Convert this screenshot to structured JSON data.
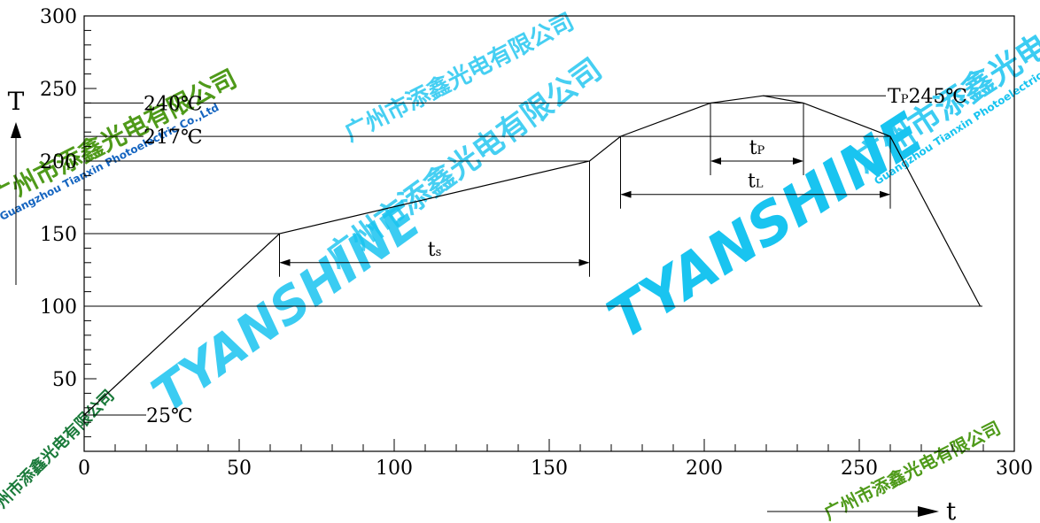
{
  "chart_data": {
    "type": "line",
    "series": [
      {
        "x": [
          0,
          63,
          163,
          173,
          202,
          219,
          232,
          260,
          289
        ],
        "y": [
          25,
          150,
          200,
          217,
          240,
          245,
          240,
          217,
          100
        ]
      }
    ],
    "xlim": [
      0,
      300
    ],
    "ylim": [
      0,
      300
    ],
    "xticks": [
      0,
      50,
      100,
      150,
      200,
      250,
      300
    ],
    "yticks": [
      50,
      100,
      150,
      200,
      250,
      300
    ],
    "x_minor_step": 10,
    "y_minor_step": 10,
    "xlabel": "t",
    "ylabel": "T",
    "grid": false,
    "reference_lines": [
      {
        "y": 240,
        "label": "240℃"
      },
      {
        "y": 217,
        "label": "217℃"
      },
      {
        "y": 200,
        "label": ""
      },
      {
        "y": 150,
        "label": ""
      },
      {
        "y": 100,
        "label": ""
      },
      {
        "y": 25,
        "label": "25℃"
      }
    ],
    "peak": {
      "label": "TP 245℃",
      "t_main": "T",
      "t_sub": "P",
      "value_text": "245℃"
    },
    "intervals": [
      {
        "name": "ts",
        "main": "t",
        "sub": "s",
        "from": 63,
        "to": 163
      },
      {
        "name": "tP",
        "main": "t",
        "sub": "P",
        "from": 202,
        "to": 232
      },
      {
        "name": "tL",
        "main": "t",
        "sub": "L",
        "from": 173,
        "to": 260
      }
    ]
  },
  "watermark": {
    "brand": "TYANSHINE",
    "company_cn": "广州市添鑫光电有限公司",
    "company_en": "Guangzhou Tianxin Photoelectric Co.,Ltd",
    "colors": {
      "cyan": "#19c4f0",
      "green": "#4f9a1a",
      "dark": "#1a7a3a",
      "blue": "#1565c0"
    }
  }
}
